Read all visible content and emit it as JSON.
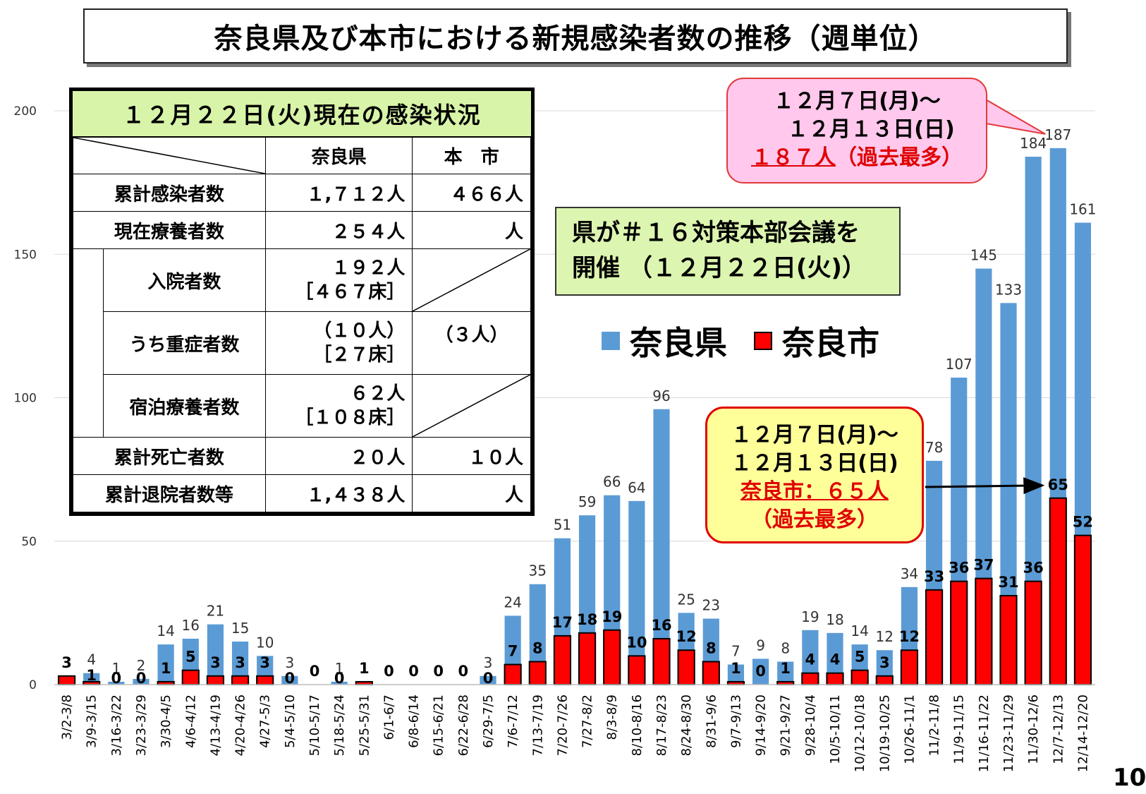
{
  "title": "奈良県及び本市における新規感染者数の推移（週単位）",
  "page_number": "10",
  "colors": {
    "nara_pref": "#5b9bd5",
    "nara_city": "#ff0000"
  },
  "legend": {
    "nara_pref": "奈良県",
    "nara_city": "奈良市"
  },
  "status_table": {
    "heading": "１２月２２日(火)現在の感染状況",
    "col_pref": "奈良県",
    "col_city": "本　市",
    "rows": {
      "cumulative_label": "累計感染者数",
      "cumulative_pref": "１,７１２人",
      "cumulative_city": "４６６人",
      "current_label": "現在療養者数",
      "current_pref": "２５４人",
      "current_city": "人",
      "hospital_label": "入院者数",
      "hospital_pref": "１９２人",
      "hospital_beds": "［４６７床］",
      "severe_label": "うち重症者数",
      "severe_pref": "（１０人）",
      "severe_beds": "［２７床］",
      "severe_city": "（３人）",
      "hotel_label": "宿泊療養者数",
      "hotel_pref": "６２人",
      "hotel_beds": "［１０８床］",
      "deaths_label": "累計死亡者数",
      "deaths_pref": "２０人",
      "deaths_city": "１０人",
      "discharged_label": "累計退院者数等",
      "discharged_pref": "１,４３８人",
      "discharged_city": "人"
    }
  },
  "callout_pref": {
    "line1": "１２月７日(月)～",
    "line2": "１２月１３日(日)",
    "count": "１８７人",
    "note": "（過去最多）"
  },
  "meeting_box": {
    "line1": "県が＃１６対策本部会議を",
    "line2": "開催 （１２月２２日(火)）"
  },
  "callout_city": {
    "line1": "１２月７日(月)～",
    "line2": "１２月１３日(日)",
    "count": "奈良市：６５人",
    "note": "（過去最多）"
  },
  "chart_data": {
    "type": "bar",
    "ylim": [
      0,
      200
    ],
    "yticks": [
      0,
      50,
      100,
      150,
      200
    ],
    "grid": true,
    "categories": [
      "3/2-3/8",
      "3/9-3/15",
      "3/16-3/22",
      "3/23-3/29",
      "3/30-4/5",
      "4/6-4/12",
      "4/13-4/19",
      "4/20-4/26",
      "4/27-5/3",
      "5/4-5/10",
      "5/10-5/17",
      "5/18-5/24",
      "5/25-5/31",
      "6/1-6/7",
      "6/8-6/14",
      "6/15-6/21",
      "6/22-6/28",
      "6/29-7/5",
      "7/6-7/12",
      "7/13-7/19",
      "7/20-7/26",
      "7/27-8/2",
      "8/3-8/9",
      "8/10-8/16",
      "8/17-8/23",
      "8/24-8/30",
      "8/31-9/6",
      "9/7-9/13",
      "9/14-9/20",
      "9/21-9/27",
      "9/28-10/4",
      "10/5-10/11",
      "10/12-10/18",
      "10/19-10/25",
      "10/26-11/1",
      "11/2-11/8",
      "11/9-11/15",
      "11/16-11/22",
      "11/23-11/29",
      "11/30-12/6",
      "12/7-12/13",
      "12/14-12/20"
    ],
    "series": [
      {
        "name": "奈良県",
        "values": [
          3,
          4,
          1,
          2,
          14,
          16,
          21,
          15,
          10,
          3,
          0,
          1,
          1,
          0,
          0,
          0,
          0,
          3,
          24,
          35,
          51,
          59,
          66,
          64,
          96,
          25,
          23,
          7,
          9,
          8,
          19,
          18,
          14,
          12,
          34,
          78,
          107,
          145,
          133,
          184,
          187,
          161
        ]
      },
      {
        "name": "奈良市",
        "values": [
          3,
          1,
          0,
          0,
          1,
          5,
          3,
          3,
          3,
          0,
          0,
          0,
          1,
          0,
          0,
          0,
          0,
          0,
          7,
          8,
          17,
          18,
          19,
          10,
          16,
          12,
          8,
          1,
          0,
          1,
          4,
          4,
          5,
          3,
          12,
          33,
          36,
          37,
          31,
          36,
          65,
          52
        ]
      }
    ]
  }
}
